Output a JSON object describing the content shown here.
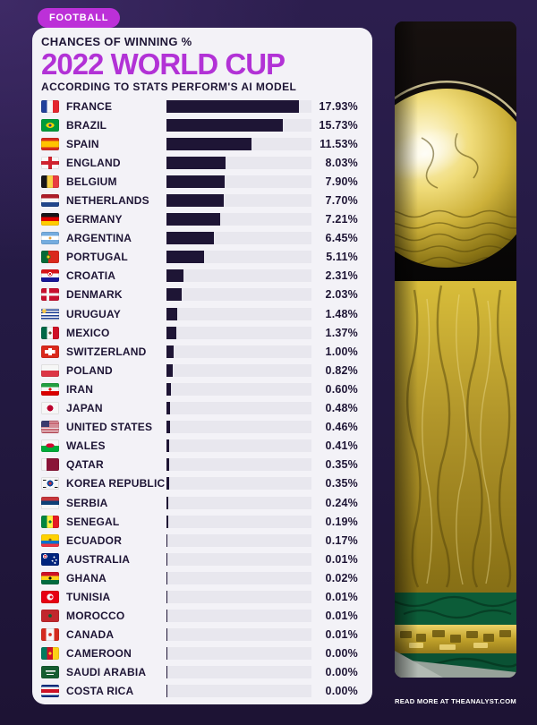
{
  "badge": {
    "label": "FOOTBALL"
  },
  "header": {
    "eyebrow": "CHANCES OF WINNING %",
    "title": "2022 WORLD CUP",
    "subtitle": "ACCORDING TO STATS PERFORM'S AI MODEL"
  },
  "footer": {
    "read_more": "READ MORE AT THEANALYST.COM"
  },
  "colors": {
    "accent": "#b832d6",
    "badge_bg": "#bc30d8",
    "bar_fill": "#1e1535",
    "bar_track": "#e8e7ee",
    "card_bg": "#f3f2f7",
    "page_bg": "#241a44",
    "text_dark": "#1e1535",
    "footer_text": "#ffffff"
  },
  "trophy_image": {
    "alt": "world-cup-trophy-photo"
  },
  "chart_data": {
    "type": "bar",
    "orientation": "horizontal",
    "title": "2022 WORLD CUP",
    "subtitle": "CHANCES OF WINNING %",
    "source": "ACCORDING TO STATS PERFORM'S AI MODEL",
    "unit": "%",
    "xlim": [
      0,
      19.6
    ],
    "grid": false,
    "legend": false,
    "categories": [
      "FRANCE",
      "BRAZIL",
      "SPAIN",
      "ENGLAND",
      "BELGIUM",
      "NETHERLANDS",
      "GERMANY",
      "ARGENTINA",
      "PORTUGAL",
      "CROATIA",
      "DENMARK",
      "URUGUAY",
      "MEXICO",
      "SWITZERLAND",
      "POLAND",
      "IRAN",
      "JAPAN",
      "UNITED STATES",
      "WALES",
      "QATAR",
      "KOREA REPUBLIC",
      "SERBIA",
      "SENEGAL",
      "ECUADOR",
      "AUSTRALIA",
      "GHANA",
      "TUNISIA",
      "MOROCCO",
      "CANADA",
      "CAMEROON",
      "SAUDI ARABIA",
      "COSTA RICA"
    ],
    "values": [
      17.93,
      15.73,
      11.53,
      8.03,
      7.9,
      7.7,
      7.21,
      6.45,
      5.11,
      2.31,
      2.03,
      1.48,
      1.37,
      1.0,
      0.82,
      0.6,
      0.48,
      0.46,
      0.41,
      0.35,
      0.35,
      0.24,
      0.19,
      0.17,
      0.01,
      0.02,
      0.01,
      0.01,
      0.01,
      0.0,
      0.0,
      0.0
    ],
    "labels": [
      "17.93%",
      "15.73%",
      "11.53%",
      "8.03%",
      "7.90%",
      "7.70%",
      "7.21%",
      "6.45%",
      "5.11%",
      "2.31%",
      "2.03%",
      "1.48%",
      "1.37%",
      "1.00%",
      "0.82%",
      "0.60%",
      "0.48%",
      "0.46%",
      "0.41%",
      "0.35%",
      "0.35%",
      "0.24%",
      "0.19%",
      "0.17%",
      "0.01%",
      "0.02%",
      "0.01%",
      "0.01%",
      "0.01%",
      "0.00%",
      "0.00%",
      "0.00%"
    ]
  },
  "flags": [
    {
      "country": "FRANCE",
      "css": "linear-gradient(90deg,#21409a 0 33%,#f6f6f6 33% 66%,#e4262d 66%)"
    },
    {
      "country": "BRAZIL",
      "css": "radial-gradient(circle 3px at 50% 50%,#26408c 0 1.6px,#ffd200 1.7px 3px,rgba(0,0,0,0) 3.1px),radial-gradient(7px 4.5px at 50% 50%,#ffd200 0 4.4px,rgba(0,0,0,0) 4.5px),linear-gradient(#009b3a,#009b3a)"
    },
    {
      "country": "SPAIN",
      "css": "linear-gradient(180deg,#d52b1e 0 25%,#ffc400 25% 75%,#d52b1e 75%)"
    },
    {
      "country": "ENGLAND",
      "css": "linear-gradient(90deg,rgba(0,0,0,0) 0 41%,#d0232e 41% 59%,rgba(0,0,0,0) 59%),linear-gradient(180deg,rgba(0,0,0,0) 0 34%,#d0232e 34% 66%,rgba(0,0,0,0) 66%),linear-gradient(#f8f8f8,#f8f8f8)"
    },
    {
      "country": "BELGIUM",
      "css": "linear-gradient(90deg,#17161a 0 33%,#f8d147 33% 66%,#e83e42 66%)"
    },
    {
      "country": "NETHERLANDS",
      "css": "linear-gradient(180deg,#ae1c28 0 33%,#f6f6f6 33% 66%,#21468b 66%)"
    },
    {
      "country": "GERMANY",
      "css": "linear-gradient(180deg,#17161a 0 33%,#dd0000 33% 66%,#ffcc00 66%)"
    },
    {
      "country": "ARGENTINA",
      "css": "radial-gradient(circle 2px at 50% 50%,#e8a33d 0 1.4px,rgba(0,0,0,0) 1.5px),linear-gradient(180deg,#74acdf 0 33%,#ffffff 33% 66%,#74acdf 66%)"
    },
    {
      "country": "PORTUGAL",
      "css": "radial-gradient(circle 2.6px at 40% 50%,#fcd116 0 1.4px,#3a6e1f 1.5px 2.6px,rgba(0,0,0,0) 2.7px),linear-gradient(90deg,#046a38 0 40%,#da291c 40%)"
    },
    {
      "country": "CROATIA",
      "css": "radial-gradient(circle 2.6px at 50% 36%,#d7141a 0 1.2px,#ffffff 1.3px 2px,#d7141a 2.1px 2.6px,rgba(0,0,0,0) 2.7px),linear-gradient(180deg,#d7141a 0 33%,#f6f6f6 33% 66%,#171796 66%)"
    },
    {
      "country": "DENMARK",
      "css": "linear-gradient(90deg,rgba(0,0,0,0) 0 30%,#f6f6f6 30% 44%,rgba(0,0,0,0) 44%),linear-gradient(180deg,rgba(0,0,0,0) 0 39%,#f6f6f6 39% 61%,rgba(0,0,0,0) 61%),linear-gradient(#c8102e,#c8102e)"
    },
    {
      "country": "URUGUAY",
      "css": "radial-gradient(circle 2.4px at 17% 26%,#f5c84b 0 2.3px,rgba(0,0,0,0) 2.4px),repeating-linear-gradient(180deg,#f6f6f6 0 1.6px,#1c3e94 1.6px 3.1px)"
    },
    {
      "country": "MEXICO",
      "css": "radial-gradient(circle 2px at 50% 50%,#6b4a2c 0 1.5px,rgba(0,0,0,0) 1.6px),linear-gradient(90deg,#006847 0 33%,#f6f6f6 33% 66%,#ce1126 66%)"
    },
    {
      "country": "SWITZERLAND",
      "css": "linear-gradient(90deg,rgba(0,0,0,0) 0 41%,#ffffff 41% 59%,rgba(0,0,0,0) 59%) 50% 50%/100% 58% no-repeat,linear-gradient(180deg,rgba(0,0,0,0) 0 36%,#ffffff 36% 64%,rgba(0,0,0,0) 64%) 50% 50%/58% 100% no-repeat,linear-gradient(#da291c,#da291c)"
    },
    {
      "country": "POLAND",
      "css": "linear-gradient(180deg,#f6f6f6 0 50%,#dc3545 50%)"
    },
    {
      "country": "IRAN",
      "css": "radial-gradient(circle 2px at 50% 50%,#da0000 0 1.5px,rgba(0,0,0,0) 1.6px),linear-gradient(180deg,#239f40 0 33%,#f6f6f6 33% 66%,#da0000 66%)"
    },
    {
      "country": "JAPAN",
      "css": "radial-gradient(circle 3.4px at 50% 50%,#bc002d 0 3.3px,rgba(0,0,0,0) 3.4px),linear-gradient(#f6f6f6,#f6f6f6)"
    },
    {
      "country": "UNITED STATES",
      "css": "linear-gradient(#3c3b6e,#3c3b6e) 0 0/9px 7px no-repeat,repeating-linear-gradient(180deg,#b22234 0 1.1px,#f6f6f6 1.1px 2.2px)"
    },
    {
      "country": "WALES",
      "css": "radial-gradient(5px 2.6px at 50% 48%,#d30731 0 90%,rgba(0,0,0,0) 91%),linear-gradient(180deg,#f6f6f6 0 50%,#00ab39 50%)"
    },
    {
      "country": "QATAR",
      "css": "linear-gradient(90deg,#f6f6f6 0 30%,#8a1538 30%)"
    },
    {
      "country": "KOREA REPUBLIC",
      "css": "radial-gradient(circle 3.4px at 50% 50%,#cd2e3a 0 1.7px,#0047a0 1.8px 3.3px,rgba(0,0,0,0) 3.4px),linear-gradient(#1b1b1b,#1b1b1b) 12% 18%/3.5px 1.1px no-repeat,linear-gradient(#1b1b1b,#1b1b1b) 12% 82%/3.5px 1.1px no-repeat,linear-gradient(#1b1b1b,#1b1b1b) 88% 18%/3.5px 1.1px no-repeat,linear-gradient(#1b1b1b,#1b1b1b) 88% 82%/3.5px 1.1px no-repeat,linear-gradient(#f6f6f6,#f6f6f6)"
    },
    {
      "country": "SERBIA",
      "css": "linear-gradient(180deg,#c6363c 0 33%,#0c4076 33% 66%,#f6f6f6 66%)"
    },
    {
      "country": "SENEGAL",
      "css": "radial-gradient(circle 2px at 50% 50%,#007a3d 0 1.5px,rgba(0,0,0,0) 1.6px),linear-gradient(90deg,#00853f 0 33%,#fdef42 33% 66%,#e31b23 66%)"
    },
    {
      "country": "ECUADOR",
      "css": "radial-gradient(circle 2px at 50% 44%,#7b5a2e 0 1.5px,rgba(0,0,0,0) 1.6px),linear-gradient(180deg,#ffd100 0 50%,#0072ce 50% 75%,#ef3340 75%)"
    },
    {
      "country": "AUSTRALIA",
      "css": "radial-gradient(circle 1px at 72% 32%,#ffffff 0 .9px,rgba(0,0,0,0) 1px),radial-gradient(circle 1px at 63% 62%,#ffffff 0 .9px,rgba(0,0,0,0) 1px),radial-gradient(circle 1px at 84% 55%,#ffffff 0 .9px,rgba(0,0,0,0) 1px),radial-gradient(circle 1px at 77% 78%,#ffffff 0 .9px,rgba(0,0,0,0) 1px),radial-gradient(circle 3px at 22% 26%,#ffffff 0 .8px,#c8102e .9px 1.6px,#ffffff 1.7px 2.4px,rgba(0,0,0,0) 2.5px),linear-gradient(#00247d,#00247d)"
    },
    {
      "country": "GHANA",
      "css": "radial-gradient(circle 2px at 50% 50%,#111111 0 1.5px,rgba(0,0,0,0) 1.6px),linear-gradient(180deg,#ce1126 0 33%,#fcd116 33% 66%,#006b3f 66%)"
    },
    {
      "country": "TUNISIA",
      "css": "radial-gradient(circle 2px at 56% 50%,#e70013 0 1.5px,rgba(0,0,0,0) 1.6px),radial-gradient(circle 3.6px at 50% 50%,#f6f6f6 0 3.5px,rgba(0,0,0,0) 3.6px),linear-gradient(#e70013,#e70013)"
    },
    {
      "country": "MOROCCO",
      "css": "radial-gradient(circle 2.2px at 50% 50%,#006233 0 1.8px,rgba(0,0,0,0) 1.9px),linear-gradient(#c1272d,#c1272d)"
    },
    {
      "country": "CANADA",
      "css": "radial-gradient(circle 2.2px at 50% 50%,#d52b1e 0 1.8px,rgba(0,0,0,0) 1.9px),linear-gradient(90deg,#d52b1e 0 28%,#f6f6f6 28% 72%,#d52b1e 72%)"
    },
    {
      "country": "CAMEROON",
      "css": "radial-gradient(circle 2px at 50% 50%,#fcd116 0 1.5px,rgba(0,0,0,0) 1.6px),linear-gradient(90deg,#007a5e 0 33%,#ce1126 33% 66%,#fcd116 66%)"
    },
    {
      "country": "SAUDI ARABIA",
      "css": "linear-gradient(#f6f6f6,#f6f6f6) 50% 38%/11px 1.6px no-repeat,linear-gradient(#f6f6f6,#f6f6f6) 50% 64%/8px 1px no-repeat,linear-gradient(#165d31,#165d31)"
    },
    {
      "country": "COSTA RICA",
      "css": "linear-gradient(180deg,#002b7f 0 18%,#f6f6f6 18% 36%,#ce1126 36% 64%,#f6f6f6 64% 82%,#002b7f 82%)"
    }
  ]
}
